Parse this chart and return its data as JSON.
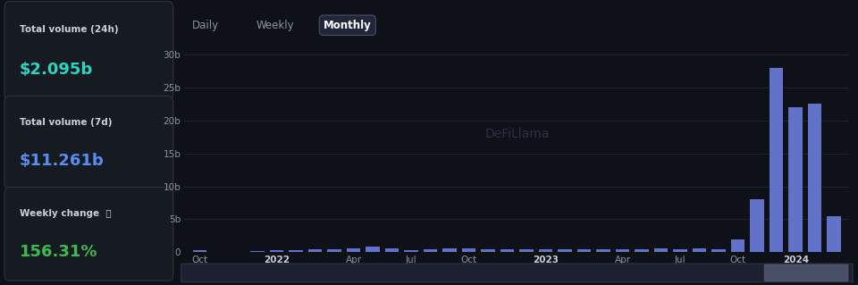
{
  "bg_color": "#0e1117",
  "panel_color": "#161b22",
  "bar_color": "#6272c8",
  "grid_color": "#252535",
  "text_color": "#c9d1d9",
  "axis_label_color": "#8b949e",
  "title_color_24h": "#2dd4bf",
  "title_color_7d": "#5b8dee",
  "weekly_color": "#3fb950",
  "stats": {
    "total_volume_24h": "$2.095b",
    "total_volume_7d": "$11.261b",
    "weekly_change": "156.31%"
  },
  "tab_labels": [
    "Daily",
    "Weekly",
    "Monthly"
  ],
  "active_tab": "Monthly",
  "watermark": "DeFiLlama",
  "ylim": [
    0,
    32
  ],
  "yticks": [
    0,
    5,
    10,
    15,
    20,
    25,
    30
  ],
  "ytick_labels": [
    "0",
    "5b",
    "10b",
    "15b",
    "20b",
    "25b",
    "30b"
  ],
  "xtick_labels": [
    "Oct",
    "2022",
    "Apr",
    "Jul",
    "Oct",
    "2023",
    "Apr",
    "Jul",
    "Oct",
    "2024"
  ],
  "xtick_positions": [
    0,
    4,
    8,
    11,
    14,
    18,
    22,
    25,
    28,
    31
  ],
  "bar_data": [
    0.25,
    0.1,
    0.1,
    0.2,
    0.3,
    0.35,
    0.45,
    0.5,
    0.55,
    0.8,
    0.6,
    0.35,
    0.5,
    0.55,
    0.6,
    0.45,
    0.4,
    0.5,
    0.45,
    0.4,
    0.5,
    0.45,
    0.4,
    0.5,
    0.55,
    0.45,
    0.55,
    0.5,
    2.0,
    8.0,
    28.0,
    22.0,
    22.5,
    5.5
  ]
}
